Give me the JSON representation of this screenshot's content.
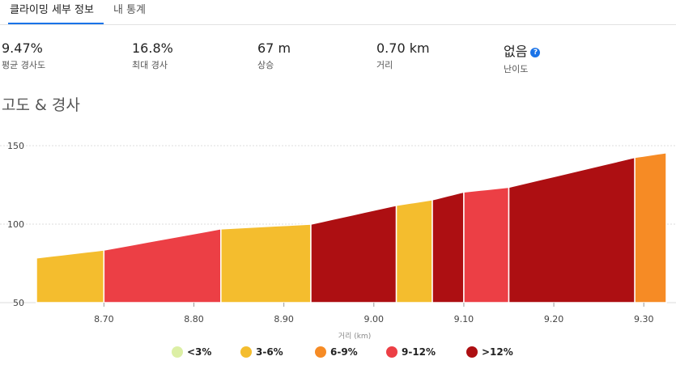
{
  "tabs": [
    {
      "label": "클라이밍 세부 정보",
      "active": true
    },
    {
      "label": "내 통계",
      "active": false
    }
  ],
  "stats": [
    {
      "value": "9.47%",
      "label": "평균 경사도"
    },
    {
      "value": "16.8%",
      "label": "최대 경사"
    },
    {
      "value": "67 m",
      "label": "상승"
    },
    {
      "value": "0.70 km",
      "label": "거리"
    },
    {
      "value": "없음",
      "label": "난이도"
    }
  ],
  "help_icon": "?",
  "section_title": "고도 & 경사",
  "colors": {
    "lt3": "#dcefa5",
    "g3_6": "#f4bd2e",
    "g6_9": "#f68b25",
    "g9_12": "#ec3f45",
    "gt12": "#ad0f12"
  },
  "chart_data": {
    "type": "area",
    "title": "",
    "xlabel": "거리 (km)",
    "ylabel": "",
    "xlim": [
      8.625,
      9.325
    ],
    "ylim": [
      50,
      150
    ],
    "x_ticks": [
      "8.70",
      "8.80",
      "8.90",
      "9.00",
      "9.10",
      "9.20",
      "9.30"
    ],
    "x_tick_values": [
      8.7,
      8.8,
      8.9,
      9.0,
      9.1,
      9.2,
      9.3
    ],
    "y_ticks": [
      "50",
      "100",
      "150"
    ],
    "y_tick_values": [
      50,
      100,
      150
    ],
    "grid": "horizontal",
    "segments": [
      {
        "x0": 8.625,
        "x1": 8.7,
        "y0": 78.5,
        "y1": 83.5,
        "color_key": "g3_6"
      },
      {
        "x0": 8.7,
        "x1": 8.83,
        "y0": 83.5,
        "y1": 97,
        "color_key": "g9_12"
      },
      {
        "x0": 8.83,
        "x1": 8.93,
        "y0": 97,
        "y1": 100,
        "color_key": "g3_6"
      },
      {
        "x0": 8.93,
        "x1": 9.025,
        "y0": 100,
        "y1": 112,
        "color_key": "gt12"
      },
      {
        "x0": 9.025,
        "x1": 9.065,
        "y0": 112,
        "y1": 115.5,
        "color_key": "g3_6"
      },
      {
        "x0": 9.065,
        "x1": 9.1,
        "y0": 115.5,
        "y1": 120.5,
        "color_key": "gt12"
      },
      {
        "x0": 9.1,
        "x1": 9.15,
        "y0": 120.5,
        "y1": 123.5,
        "color_key": "g9_12"
      },
      {
        "x0": 9.15,
        "x1": 9.29,
        "y0": 123.5,
        "y1": 142.5,
        "color_key": "gt12"
      },
      {
        "x0": 9.29,
        "x1": 9.325,
        "y0": 142.5,
        "y1": 145.5,
        "color_key": "g6_9"
      }
    ],
    "legend": [
      {
        "label": "<3%",
        "color_key": "lt3"
      },
      {
        "label": "3-6%",
        "color_key": "g3_6"
      },
      {
        "label": "6-9%",
        "color_key": "g6_9"
      },
      {
        "label": "9-12%",
        "color_key": "g9_12"
      },
      {
        "label": ">12%",
        "color_key": "gt12"
      }
    ],
    "legend_position": "bottom"
  }
}
